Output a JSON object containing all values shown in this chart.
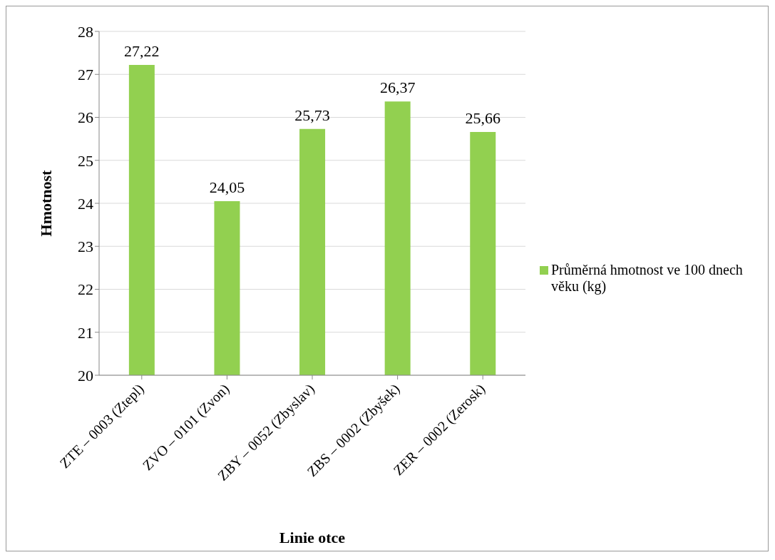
{
  "chart_data": {
    "type": "bar",
    "xlabel": "Linie otce",
    "ylabel": "Hmotnost",
    "categories": [
      "ZTE – 0003 (Ztepl)",
      "ZVO – 0101 (Zvon)",
      "ZBY – 0052 (Zbyslav)",
      "ZBS – 0002 (Zbyšek)",
      "ZER – 0002 (Zerosk)"
    ],
    "series": [
      {
        "name": "Průměrná hmotnost ve 100 dnech věku (kg)",
        "color": "#92d050",
        "values": [
          27.22,
          24.05,
          25.73,
          26.37,
          25.66
        ],
        "value_labels": [
          "27,22",
          "24,05",
          "25,73",
          "26,37",
          "25,66"
        ]
      }
    ],
    "ylim": [
      20,
      28
    ],
    "yticks": [
      20,
      21,
      22,
      23,
      24,
      25,
      26,
      27,
      28
    ],
    "grid": "y",
    "legend": "right"
  }
}
